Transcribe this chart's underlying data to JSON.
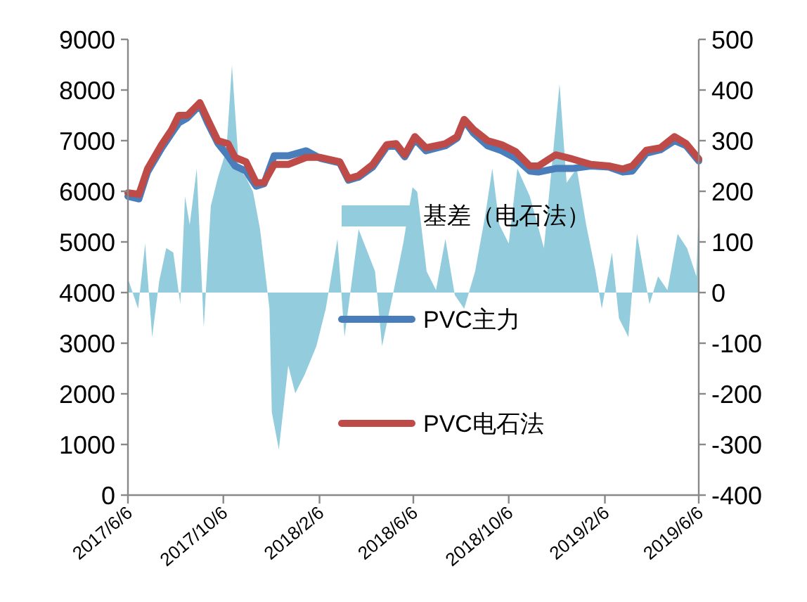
{
  "chart_data": {
    "type": "line",
    "legend": "right",
    "xlim": [
      "2017-06-06",
      "2019-06-06"
    ],
    "xticks": [
      {
        "value": "2017-06-06",
        "label": "2017/6/6"
      },
      {
        "value": "2017-10-06",
        "label": "2017/10/6"
      },
      {
        "value": "2018-02-06",
        "label": "2018/2/6"
      },
      {
        "value": "2018-06-06",
        "label": "2018/6/6"
      },
      {
        "value": "2018-10-06",
        "label": "2018/10/6"
      },
      {
        "value": "2019-02-06",
        "label": "2019/2/6"
      },
      {
        "value": "2019-06-06",
        "label": "2019/6/6"
      }
    ],
    "ylim": [
      0,
      9000
    ],
    "yticks": [
      0,
      1000,
      2000,
      3000,
      4000,
      5000,
      6000,
      7000,
      8000,
      9000
    ],
    "y2lim": [
      -400,
      500
    ],
    "y2ticks": [
      -400,
      -300,
      -200,
      -100,
      0,
      100,
      200,
      300,
      400,
      500
    ],
    "series": [
      {
        "name": "基差（电石法）",
        "type": "area",
        "axis": "y2",
        "color": "#93cddd",
        "x": [
          "2017-06-06",
          "2017-06-07",
          "2017-06-19",
          "2017-06-28",
          "2017-07-07",
          "2017-07-16",
          "2017-07-25",
          "2017-08-03",
          "2017-08-12",
          "2017-08-18",
          "2017-08-24",
          "2017-09-02",
          "2017-09-11",
          "2017-09-20",
          "2017-09-29",
          "2017-10-10",
          "2017-10-17",
          "2017-10-26",
          "2017-11-04",
          "2017-11-13",
          "2017-11-22",
          "2017-12-04",
          "2017-12-07",
          "2017-12-16",
          "2017-12-28",
          "2018-01-06",
          "2018-01-18",
          "2018-02-02",
          "2018-02-14",
          "2018-03-01",
          "2018-03-10",
          "2018-03-28",
          "2018-04-18",
          "2018-04-27",
          "2018-05-12",
          "2018-05-24",
          "2018-06-05",
          "2018-06-11",
          "2018-06-23",
          "2018-07-05",
          "2018-07-17",
          "2018-07-29",
          "2018-08-10",
          "2018-08-24",
          "2018-09-06",
          "2018-09-15",
          "2018-09-24",
          "2018-10-06",
          "2018-10-17",
          "2018-11-02",
          "2018-11-20",
          "2018-12-01",
          "2018-12-10",
          "2018-12-19",
          "2019-01-01",
          "2019-01-13",
          "2019-01-25",
          "2019-02-02",
          "2019-02-15",
          "2019-02-24",
          "2019-03-08",
          "2019-03-19",
          "2019-04-04",
          "2019-04-15",
          "2019-04-27",
          "2019-05-10",
          "2019-05-22",
          "2019-06-03",
          "2019-06-06"
        ],
        "values": [
          0,
          23,
          -32,
          97,
          -88,
          23,
          88,
          79,
          -23,
          190,
          134,
          245,
          -69,
          171,
          227,
          282,
          449,
          245,
          227,
          199,
          125,
          -32,
          -236,
          -310,
          -144,
          -199,
          -162,
          -106,
          -32,
          106,
          -88,
          125,
          42,
          -106,
          5,
          97,
          208,
          199,
          42,
          5,
          106,
          -5,
          -32,
          42,
          153,
          245,
          134,
          97,
          245,
          190,
          88,
          264,
          412,
          217,
          245,
          134,
          42,
          -32,
          79,
          -51,
          -88,
          116,
          -23,
          32,
          5,
          116,
          88,
          32,
          170
        ]
      },
      {
        "name": "PVC主力",
        "color": "#4a7ebb",
        "x": [
          "2017-06-06",
          "2017-06-20",
          "2017-07-01",
          "2017-07-19",
          "2017-08-01",
          "2017-08-10",
          "2017-08-21",
          "2017-09-06",
          "2017-09-16",
          "2017-09-29",
          "2017-10-12",
          "2017-10-21",
          "2017-11-04",
          "2017-11-17",
          "2017-11-27",
          "2017-12-10",
          "2017-12-28",
          "2018-01-20",
          "2018-02-07",
          "2018-03-04",
          "2018-03-15",
          "2018-03-28",
          "2018-04-15",
          "2018-05-03",
          "2018-05-15",
          "2018-05-26",
          "2018-06-08",
          "2018-06-22",
          "2018-07-17",
          "2018-08-01",
          "2018-08-10",
          "2018-08-22",
          "2018-09-09",
          "2018-09-27",
          "2018-10-15",
          "2018-11-02",
          "2018-11-13",
          "2018-12-05",
          "2018-12-26",
          "2019-01-19",
          "2019-02-11",
          "2019-03-01",
          "2019-03-13",
          "2019-03-31",
          "2019-04-18",
          "2019-05-06",
          "2019-05-21",
          "2019-06-06"
        ],
        "values": [
          5900,
          5850,
          6380,
          6850,
          7150,
          7350,
          7450,
          7700,
          7350,
          6950,
          6700,
          6500,
          6400,
          6100,
          6150,
          6700,
          6700,
          6800,
          6650,
          6560,
          6220,
          6280,
          6480,
          6880,
          6900,
          6680,
          7030,
          6800,
          6900,
          7050,
          7400,
          7150,
          6900,
          6800,
          6650,
          6400,
          6380,
          6450,
          6450,
          6500,
          6480,
          6380,
          6400,
          6750,
          6820,
          7000,
          6900,
          6600
        ]
      },
      {
        "name": "PVC电石法",
        "color": "#be4b48",
        "x": [
          "2017-06-06",
          "2017-06-20",
          "2017-07-01",
          "2017-07-19",
          "2017-08-01",
          "2017-08-10",
          "2017-08-21",
          "2017-09-06",
          "2017-09-16",
          "2017-09-29",
          "2017-10-12",
          "2017-10-21",
          "2017-11-04",
          "2017-11-17",
          "2017-11-27",
          "2017-12-10",
          "2017-12-28",
          "2018-01-20",
          "2018-02-07",
          "2018-03-04",
          "2018-03-15",
          "2018-03-28",
          "2018-04-15",
          "2018-05-03",
          "2018-05-15",
          "2018-05-26",
          "2018-06-08",
          "2018-06-22",
          "2018-07-17",
          "2018-08-01",
          "2018-08-10",
          "2018-08-22",
          "2018-09-09",
          "2018-09-27",
          "2018-10-15",
          "2018-11-02",
          "2018-11-13",
          "2018-12-05",
          "2018-12-26",
          "2019-01-19",
          "2019-02-11",
          "2019-03-01",
          "2019-03-13",
          "2019-03-31",
          "2019-04-18",
          "2019-05-06",
          "2019-05-21",
          "2019-06-06"
        ],
        "values": [
          5970,
          5940,
          6440,
          6920,
          7220,
          7500,
          7500,
          7750,
          7420,
          7000,
          6940,
          6670,
          6580,
          6170,
          6170,
          6530,
          6530,
          6670,
          6670,
          6580,
          6250,
          6310,
          6530,
          6920,
          6940,
          6720,
          7080,
          6860,
          6940,
          7080,
          7420,
          7220,
          7000,
          6920,
          6780,
          6500,
          6500,
          6720,
          6640,
          6530,
          6500,
          6440,
          6500,
          6810,
          6860,
          7080,
          6940,
          6640
        ]
      }
    ]
  }
}
